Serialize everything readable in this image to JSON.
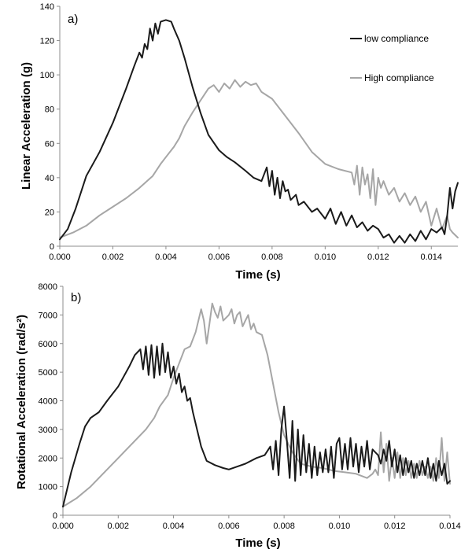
{
  "chart_data": [
    {
      "type": "line",
      "panel_label": "a)",
      "xlabel": "Time (s)",
      "ylabel": "Linear Acceleration (g)",
      "xlim": [
        0,
        0.015
      ],
      "ylim": [
        0,
        140
      ],
      "xticks": [
        "0.000",
        "0.002",
        "0.004",
        "0.006",
        "0.008",
        "0.010",
        "0.012",
        "0.014"
      ],
      "yticks": [
        "0",
        "20",
        "40",
        "60",
        "80",
        "100",
        "120",
        "140"
      ],
      "grid": false,
      "legend_position": "top-right",
      "series": [
        {
          "name": "low compliance",
          "color": "#1a1a1a",
          "x": [
            0,
            0.0003,
            0.0006,
            0.001,
            0.0015,
            0.002,
            0.0025,
            0.0028,
            0.003,
            0.0031,
            0.0032,
            0.0033,
            0.0034,
            0.0035,
            0.0036,
            0.0037,
            0.0038,
            0.004,
            0.0042,
            0.0043,
            0.0045,
            0.0047,
            0.005,
            0.0053,
            0.0056,
            0.006,
            0.0063,
            0.0066,
            0.007,
            0.0073,
            0.0076,
            0.0078,
            0.0079,
            0.008,
            0.0081,
            0.0082,
            0.0083,
            0.0084,
            0.0085,
            0.0086,
            0.0087,
            0.0089,
            0.009,
            0.0092,
            0.0095,
            0.0097,
            0.01,
            0.0102,
            0.0104,
            0.0106,
            0.0108,
            0.011,
            0.0112,
            0.0114,
            0.0116,
            0.0118,
            0.012,
            0.0122,
            0.0124,
            0.0126,
            0.0128,
            0.013,
            0.0132,
            0.0134,
            0.0136,
            0.0138,
            0.014,
            0.0142,
            0.0144,
            0.0145,
            0.0146,
            0.0147,
            0.0148,
            0.0149,
            0.015
          ],
          "y": [
            4,
            10,
            22,
            41,
            55,
            72,
            92,
            105,
            113,
            110,
            118,
            115,
            127,
            120,
            130,
            124,
            131,
            132,
            131,
            127,
            120,
            110,
            93,
            78,
            65,
            56,
            52,
            49,
            44,
            40,
            38,
            46,
            35,
            44,
            30,
            40,
            28,
            38,
            32,
            33,
            27,
            30,
            24,
            26,
            20,
            22,
            16,
            22,
            13,
            20,
            12,
            18,
            11,
            14,
            9,
            12,
            10,
            5,
            7,
            2,
            6,
            2,
            7,
            3,
            9,
            4,
            10,
            8,
            11,
            7,
            18,
            34,
            22,
            32,
            37
          ]
        },
        {
          "name": "High compliance",
          "color": "#a6a6a6",
          "x": [
            0,
            0.0005,
            0.001,
            0.0015,
            0.002,
            0.0025,
            0.003,
            0.0035,
            0.0038,
            0.004,
            0.0043,
            0.0045,
            0.0047,
            0.005,
            0.0053,
            0.0056,
            0.0058,
            0.006,
            0.0062,
            0.0064,
            0.0066,
            0.0068,
            0.007,
            0.0072,
            0.0074,
            0.0076,
            0.008,
            0.0085,
            0.009,
            0.0095,
            0.01,
            0.0105,
            0.011,
            0.0111,
            0.0112,
            0.0113,
            0.0114,
            0.0115,
            0.0116,
            0.0117,
            0.0118,
            0.0119,
            0.012,
            0.0121,
            0.0122,
            0.0124,
            0.0126,
            0.0128,
            0.013,
            0.0132,
            0.0134,
            0.0136,
            0.0138,
            0.014,
            0.0142,
            0.0144,
            0.0146,
            0.0147,
            0.0148,
            0.015
          ],
          "y": [
            5,
            8,
            12,
            18,
            23,
            28,
            34,
            41,
            48,
            52,
            58,
            63,
            70,
            78,
            85,
            92,
            94,
            90,
            95,
            92,
            97,
            93,
            96,
            94,
            95,
            90,
            86,
            76,
            66,
            55,
            48,
            45,
            43,
            36,
            47,
            30,
            46,
            36,
            42,
            28,
            45,
            24,
            40,
            34,
            38,
            30,
            34,
            26,
            31,
            24,
            29,
            20,
            26,
            12,
            22,
            10,
            18,
            10,
            8,
            5
          ]
        }
      ]
    },
    {
      "type": "line",
      "panel_label": "b)",
      "xlabel": "Time (s)",
      "ylabel": "Rotational Acceleration (rad/s²)",
      "xlim": [
        0,
        0.014
      ],
      "ylim": [
        0,
        8000
      ],
      "xticks": [
        "0.000",
        "0.002",
        "0.004",
        "0.006",
        "0.008",
        "0.010",
        "0.012",
        "0.014"
      ],
      "yticks": [
        "0",
        "1000",
        "2000",
        "3000",
        "4000",
        "5000",
        "6000",
        "7000",
        "8000"
      ],
      "grid": false,
      "series": [
        {
          "name": "low compliance",
          "color": "#1a1a1a",
          "x": [
            0,
            0.0003,
            0.0006,
            0.0008,
            0.001,
            0.0013,
            0.0016,
            0.002,
            0.0024,
            0.0026,
            0.0028,
            0.0029,
            0.003,
            0.0031,
            0.0032,
            0.0033,
            0.0034,
            0.0035,
            0.0036,
            0.0037,
            0.0038,
            0.0039,
            0.004,
            0.0041,
            0.0042,
            0.0043,
            0.0044,
            0.0045,
            0.0046,
            0.0047,
            0.0048,
            0.005,
            0.0052,
            0.0055,
            0.0058,
            0.006,
            0.0063,
            0.0066,
            0.007,
            0.0073,
            0.0075,
            0.0076,
            0.0077,
            0.0078,
            0.0079,
            0.008,
            0.0081,
            0.0082,
            0.0083,
            0.0084,
            0.0085,
            0.0086,
            0.0087,
            0.0088,
            0.0089,
            0.009,
            0.0091,
            0.0092,
            0.0093,
            0.0094,
            0.0095,
            0.0096,
            0.0097,
            0.0098,
            0.0099,
            0.01,
            0.0101,
            0.0102,
            0.0103,
            0.0104,
            0.0105,
            0.0106,
            0.0107,
            0.0108,
            0.0109,
            0.011,
            0.0111,
            0.0112,
            0.0113,
            0.0114,
            0.0115,
            0.0116,
            0.0117,
            0.0118,
            0.0119,
            0.012,
            0.0121,
            0.0122,
            0.0123,
            0.0124,
            0.0125,
            0.0126,
            0.0127,
            0.0128,
            0.0129,
            0.013,
            0.0131,
            0.0132,
            0.0133,
            0.0134,
            0.0135,
            0.0136,
            0.0137,
            0.0138,
            0.0139,
            0.014
          ],
          "y": [
            300,
            1500,
            2500,
            3100,
            3400,
            3600,
            4000,
            4500,
            5200,
            5600,
            5800,
            5100,
            5900,
            4900,
            5950,
            4800,
            5900,
            4900,
            6000,
            5000,
            5700,
            4800,
            5200,
            4600,
            4950,
            4300,
            4500,
            4000,
            4100,
            3600,
            3200,
            2400,
            1900,
            1750,
            1650,
            1600,
            1700,
            1800,
            2000,
            2100,
            2400,
            1600,
            2600,
            1400,
            3000,
            3800,
            2600,
            1300,
            3300,
            1200,
            3000,
            1400,
            2800,
            1500,
            2500,
            1300,
            2400,
            1400,
            2200,
            1500,
            2300,
            1500,
            2400,
            1300,
            2500,
            2700,
            1600,
            2500,
            1600,
            2700,
            1700,
            2500,
            1500,
            2400,
            1700,
            2600,
            1600,
            2300,
            2200,
            2100,
            1800,
            2300,
            1900,
            2600,
            1700,
            2300,
            1500,
            2100,
            1400,
            2000,
            1500,
            1900,
            1300,
            1800,
            1400,
            1900,
            1400,
            2000,
            1300,
            1800,
            1200,
            1900,
            1400,
            1800,
            1100,
            1200
          ]
        },
        {
          "name": "High compliance",
          "color": "#a6a6a6",
          "x": [
            0,
            0.0005,
            0.001,
            0.0015,
            0.002,
            0.0025,
            0.003,
            0.0033,
            0.0035,
            0.0038,
            0.004,
            0.0042,
            0.0044,
            0.0046,
            0.0048,
            0.005,
            0.0051,
            0.0052,
            0.0053,
            0.0054,
            0.0055,
            0.0056,
            0.0057,
            0.0058,
            0.006,
            0.0061,
            0.0062,
            0.0063,
            0.0064,
            0.0065,
            0.0066,
            0.0067,
            0.0068,
            0.0069,
            0.007,
            0.0072,
            0.0074,
            0.0076,
            0.0078,
            0.008,
            0.0083,
            0.0086,
            0.009,
            0.0094,
            0.0098,
            0.0102,
            0.0106,
            0.011,
            0.0112,
            0.0113,
            0.0114,
            0.0115,
            0.0116,
            0.0117,
            0.0118,
            0.0119,
            0.012,
            0.0121,
            0.0122,
            0.0123,
            0.0124,
            0.0125,
            0.0126,
            0.0127,
            0.0128,
            0.0129,
            0.013,
            0.0131,
            0.0132,
            0.0133,
            0.0134,
            0.0135,
            0.0136,
            0.0137,
            0.0138,
            0.0139,
            0.014
          ],
          "y": [
            300,
            600,
            1000,
            1500,
            2000,
            2500,
            3000,
            3400,
            3800,
            4200,
            4800,
            5300,
            5800,
            5900,
            6400,
            7200,
            6800,
            6000,
            6700,
            7400,
            7100,
            6900,
            7300,
            6800,
            7000,
            7200,
            6700,
            7000,
            7100,
            6600,
            6800,
            7000,
            6500,
            6700,
            6400,
            6300,
            5600,
            4600,
            3600,
            2800,
            2200,
            1800,
            1700,
            1650,
            1550,
            1500,
            1450,
            1300,
            1450,
            1600,
            1400,
            2900,
            1500,
            2500,
            1200,
            2000,
            1300,
            2200,
            1300,
            2000,
            1400,
            1900,
            1300,
            1800,
            1300,
            1900,
            1400,
            1700,
            1300,
            1700,
            1200,
            2000,
            1300,
            2700,
            1200,
            2200,
            1100
          ]
        }
      ]
    }
  ]
}
